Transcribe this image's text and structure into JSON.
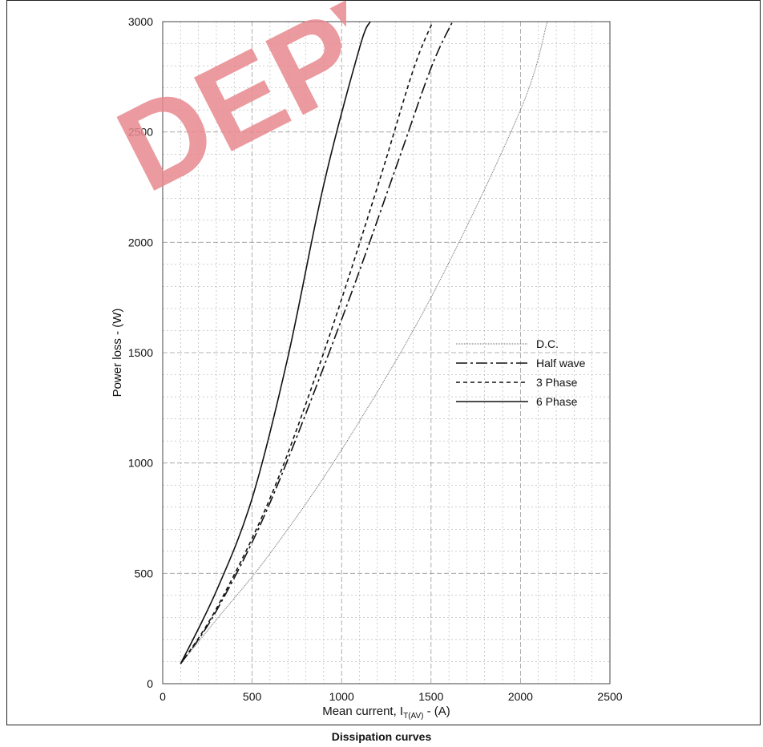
{
  "caption": "Dissipation curves",
  "watermark_text": "DEPW",
  "colors": {
    "watermark": "#e8898f",
    "grid": "#9a9a9a",
    "line": "#111111"
  },
  "chart_data": {
    "type": "line",
    "xlabel_main": "Mean current, I",
    "xlabel_sub": "T(AV)",
    "xlabel_suffix": " - (A)",
    "ylabel": "Power loss - (W)",
    "xlim": [
      0,
      2500
    ],
    "ylim": [
      0,
      3000
    ],
    "x_ticks": [
      0,
      500,
      1000,
      1500,
      2000,
      2500
    ],
    "y_ticks": [
      0,
      500,
      1000,
      1500,
      2000,
      2500,
      3000
    ],
    "grid": true,
    "legend_position": "center-right",
    "series": [
      {
        "name": "D.C.",
        "style": "dotted-light",
        "x": [
          100,
          300,
          600,
          1000,
          1500,
          2000,
          2150
        ],
        "y": [
          90,
          290,
          590,
          1060,
          1750,
          2600,
          3000
        ]
      },
      {
        "name": "Half wave",
        "style": "dashdot",
        "x": [
          100,
          300,
          600,
          1000,
          1300,
          1500,
          1620
        ],
        "y": [
          90,
          330,
          820,
          1650,
          2330,
          2790,
          3000
        ]
      },
      {
        "name": "3 Phase",
        "style": "dashed",
        "x": [
          100,
          300,
          600,
          900,
          1200,
          1400,
          1510
        ],
        "y": [
          90,
          340,
          840,
          1500,
          2250,
          2780,
          3000
        ]
      },
      {
        "name": "6 Phase",
        "style": "solid",
        "x": [
          100,
          300,
          500,
          700,
          900,
          1100,
          1160
        ],
        "y": [
          90,
          420,
          840,
          1480,
          2260,
          2880,
          3000
        ]
      }
    ]
  }
}
